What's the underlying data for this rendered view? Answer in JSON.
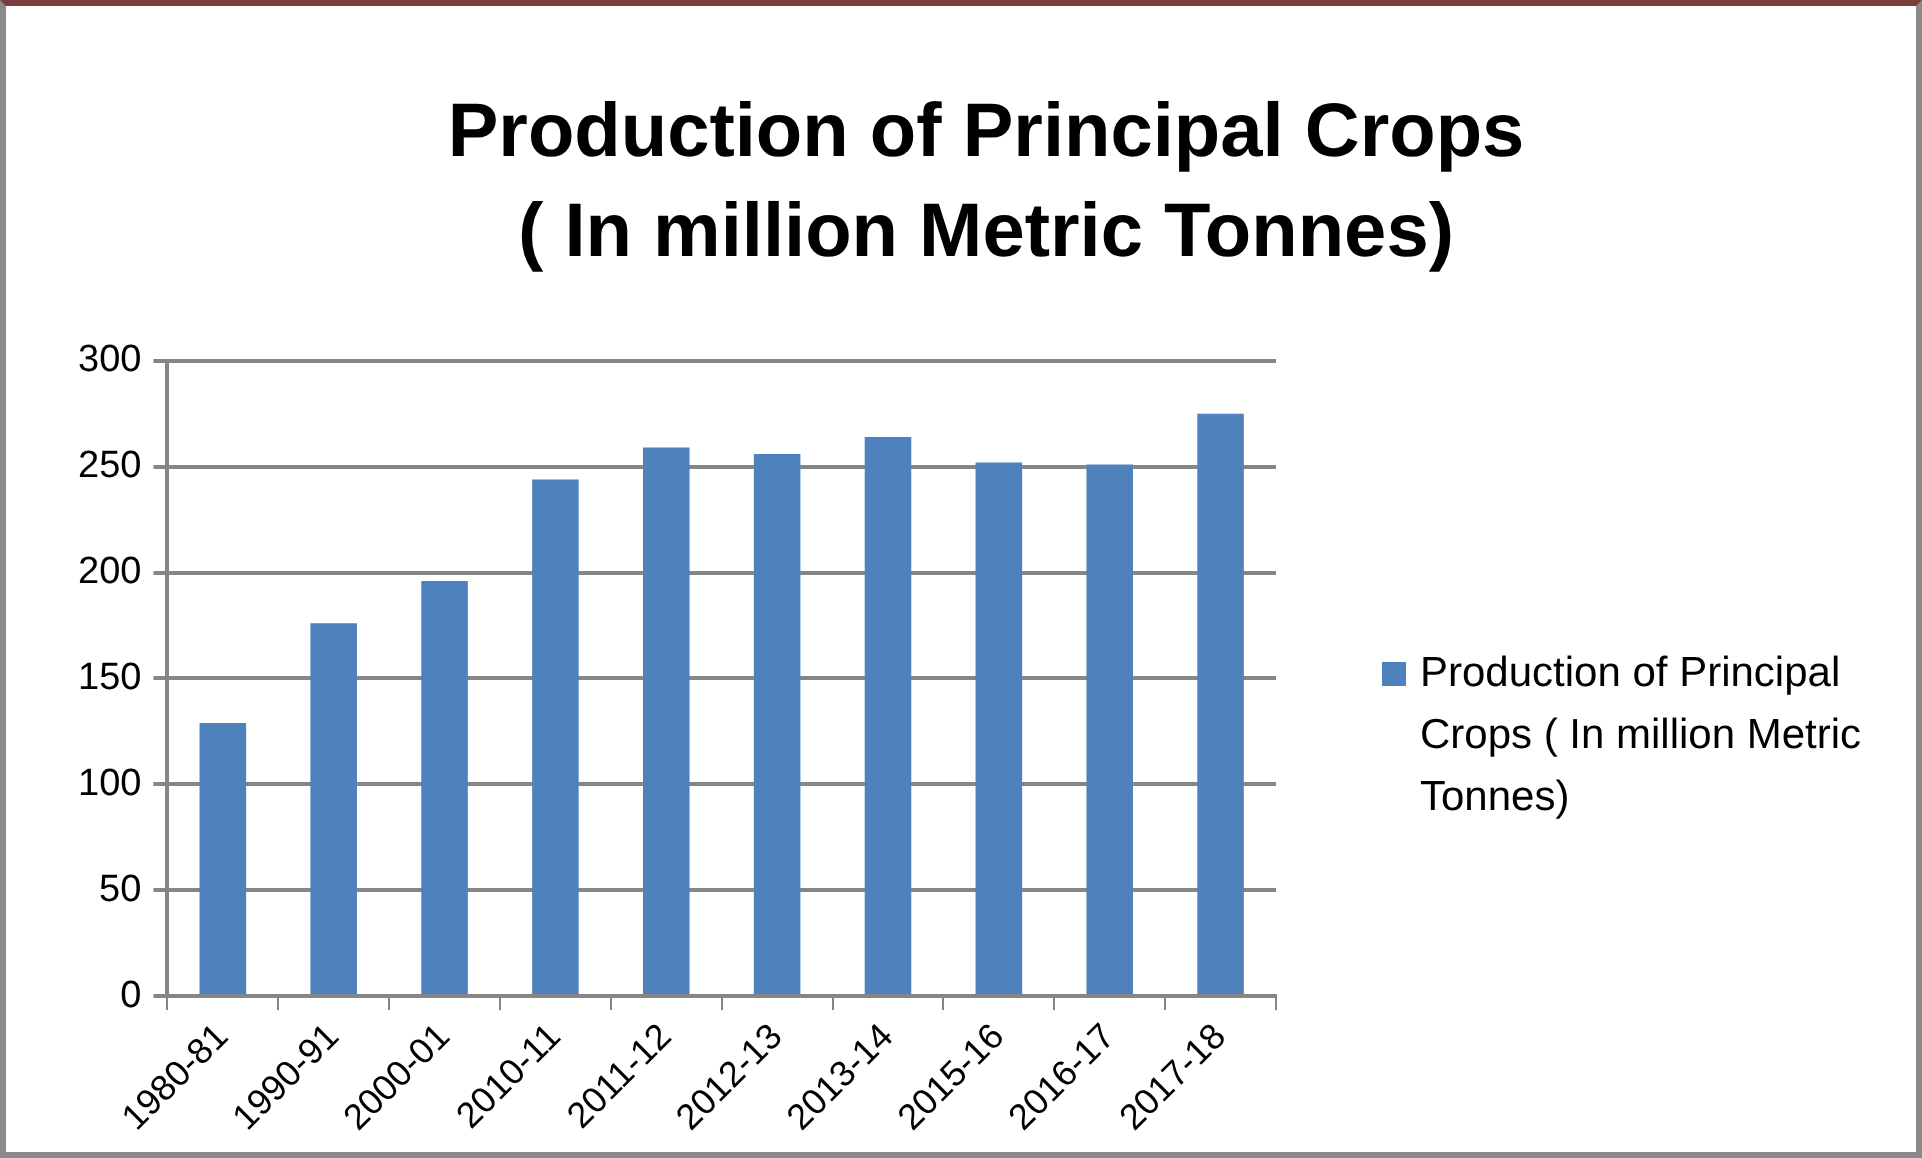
{
  "chart_data": {
    "type": "bar",
    "title": "Production of Principal Crops\n( In million Metric Tonnes)",
    "categories": [
      "1980-81",
      "1990-91",
      "2000-01",
      "2010-11",
      "2011-12",
      "2012-13",
      "2013-14",
      "2015-16",
      "2016-17",
      "2017-18"
    ],
    "series": [
      {
        "name": "Production of Principal Crops      ( In million Metric Tonnes)",
        "color": "#4f81bd",
        "values": [
          129,
          176,
          196,
          244,
          259,
          256,
          264,
          252,
          251,
          275
        ]
      }
    ],
    "ylim": [
      0,
      300
    ],
    "yticks": [
      0,
      50,
      100,
      150,
      200,
      250,
      300
    ],
    "grid": "y",
    "legend": "right"
  }
}
